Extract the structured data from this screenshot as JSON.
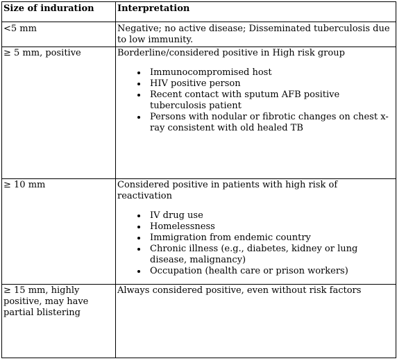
{
  "table": {
    "headers": [
      "Size of induration",
      "Interpretation"
    ],
    "rows": [
      {
        "size": "<5 mm",
        "interpretation": "Negative; no active disease; Disseminated tuberculosis due to low immunity.",
        "bullets": []
      },
      {
        "size": "≥ 5 mm, positive",
        "interpretation": "Borderline/considered positive in High risk group",
        "bullets": [
          "Immunocompromised host",
          "HIV positive person",
          "Recent contact with sputum AFB positive tuberculosis patient",
          "Persons with nodular or fibrotic changes on chest x-ray consistent with old healed TB"
        ]
      },
      {
        "size": "≥ 10 mm",
        "interpretation": "Considered positive in patients with high risk of reactivation",
        "bullets": [
          "IV drug use",
          "Homelessness",
          "Immigration from endemic country",
          "Chronic illness (e.g., diabetes, kidney or lung disease, malignancy)",
          "Occupation (health care or prison workers)"
        ]
      },
      {
        "size": "≥ 15 mm, highly positive, may have partial blistering",
        "interpretation": "Always considered positive, even without risk factors",
        "bullets": []
      }
    ]
  }
}
